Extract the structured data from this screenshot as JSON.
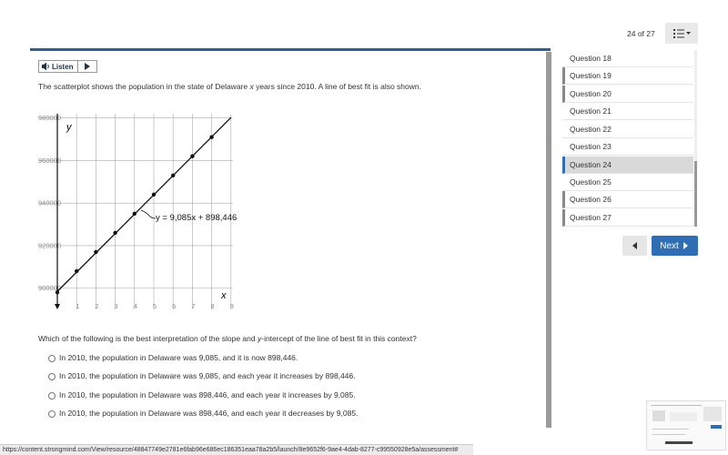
{
  "header": {
    "progress": "24 of 27"
  },
  "listen_button": {
    "label": "Listen"
  },
  "prompt": [
    "The scatterplot shows the population in the state of Delaware ",
    "x",
    " years since 2010.  A line of best fit is also shown."
  ],
  "chart_data": {
    "type": "scatter",
    "x_label": "x",
    "y_label": "y",
    "x": [
      0,
      1,
      2,
      3,
      4,
      5,
      6,
      7,
      8
    ],
    "values": [
      898000,
      908000,
      917000,
      926000,
      935000,
      944000,
      953000,
      962000,
      971000
    ],
    "color": "#111111",
    "fit": {
      "slope": 9085,
      "intercept": 898446,
      "label": "y = 9,085x + 898,446"
    },
    "xlim": [
      0,
      9
    ],
    "xticks": [
      1,
      2,
      3,
      4,
      5,
      6,
      7,
      8,
      9
    ],
    "ylim": [
      890000,
      982000
    ],
    "yticks": [
      900000,
      920000,
      940000,
      960000,
      980000
    ],
    "grid": true
  },
  "question": [
    "Which of the following is the best interpretation of the slope and ",
    "y",
    "-intercept of the line of best fit in this context?"
  ],
  "options": [
    "In 2010, the population in Delaware was 9,085, and it is now 898,446.",
    "In 2010, the population in Delaware was 9,085, and each year it increases by 898,446.",
    "In 2010, the population in Delaware was 898,446, and each year it increases by 9,085.",
    "In 2010, the population in Delaware was 898,446, and each year it decreases by 9,085."
  ],
  "navigation": {
    "questions": [
      "Question 18",
      "Question 19",
      "Question 20",
      "Question 21",
      "Question 22",
      "Question 23",
      "Question 24",
      "Question 25",
      "Question 26",
      "Question 27"
    ],
    "next": "Next"
  },
  "status_url": "https://content.strongmind.com/View/resource/48847749e2781e6fab96e686ec186351eaa78a2b5/launch/8e9652f6-9ae4-4dab-8277-c99550928e5a/assessment#"
}
